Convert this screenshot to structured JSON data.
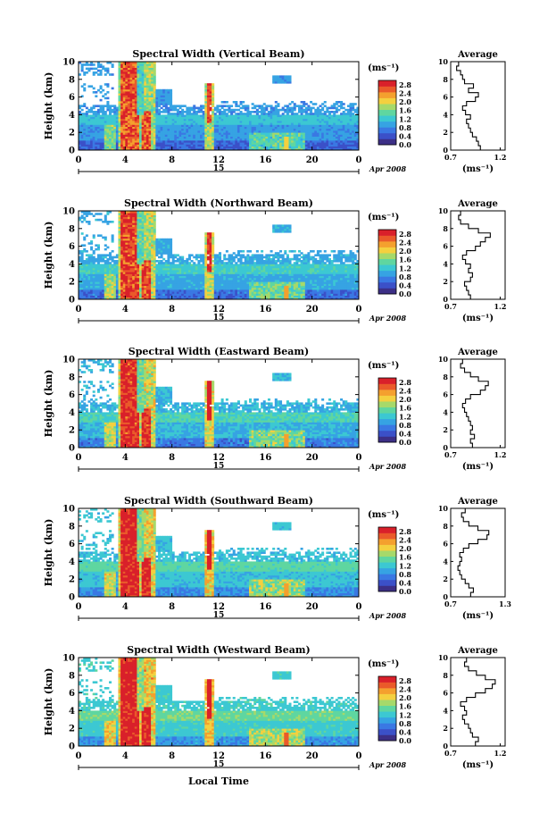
{
  "figure": {
    "xlabel_bottom": "Local Time",
    "date_label": "Apr 2008",
    "day_label": "15",
    "ylabel": "Height (km)",
    "cbar_unit": "(ms⁻¹)",
    "avg_title": "Average",
    "avg_xlabel": "(ms⁻¹)"
  },
  "colors": {
    "scale": [
      "#3c2f86",
      "#3b50c8",
      "#3a78e3",
      "#36a3e3",
      "#3cc8d2",
      "#5fd6a0",
      "#a6d96a",
      "#f4d03f",
      "#f4a02e",
      "#ea5a2a",
      "#d9202a"
    ]
  },
  "chart_data": [
    {
      "type": "heatmap",
      "title": "Spectral Width (Vertical Beam)",
      "x_ticks": [
        "0",
        "4",
        "8",
        "12",
        "16",
        "20",
        "0"
      ],
      "y_ticks": [
        "0",
        "2",
        "4",
        "6",
        "8",
        "10"
      ],
      "xlim": [
        0,
        24
      ],
      "ylim": [
        0,
        10
      ],
      "cbar_ticks": [
        "0.0",
        "0.4",
        "0.8",
        "1.2",
        "1.6",
        "2.0",
        "2.4",
        "2.8"
      ],
      "cbar_range": [
        0,
        2.8
      ],
      "average": {
        "x_ticks": [
          "0.7",
          "1.2"
        ],
        "xlim": [
          0.7,
          1.25
        ],
        "height": [
          0,
          0.5,
          1,
          1.5,
          2,
          2.5,
          3,
          3.5,
          4,
          4.5,
          5,
          5.5,
          6,
          6.5,
          7,
          7.5,
          8,
          8.5,
          9,
          9.5
        ],
        "value": [
          1.0,
          0.98,
          0.96,
          0.92,
          0.9,
          0.88,
          0.86,
          0.9,
          0.85,
          0.82,
          0.86,
          0.95,
          0.98,
          0.88,
          0.93,
          0.84,
          0.82,
          0.8,
          0.76,
          0.78
        ]
      }
    },
    {
      "type": "heatmap",
      "title": "Spectral Width (Northward Beam)",
      "x_ticks": [
        "0",
        "4",
        "8",
        "12",
        "16",
        "20",
        "0"
      ],
      "y_ticks": [
        "0",
        "2",
        "4",
        "6",
        "8",
        "10"
      ],
      "xlim": [
        0,
        24
      ],
      "ylim": [
        0,
        10
      ],
      "cbar_ticks": [
        "0.0",
        "0.4",
        "0.8",
        "1.2",
        "1.6",
        "2.0",
        "2.4",
        "2.8"
      ],
      "cbar_range": [
        0,
        2.8
      ],
      "average": {
        "x_ticks": [
          "0.7",
          "1.2"
        ],
        "xlim": [
          0.7,
          1.25
        ],
        "height": [
          0,
          0.5,
          1,
          1.5,
          2,
          2.5,
          3,
          3.5,
          4,
          4.5,
          5,
          5.5,
          6,
          6.5,
          7,
          7.5,
          8,
          8.5,
          9,
          9.5
        ],
        "value": [
          0.9,
          0.88,
          0.86,
          0.84,
          0.9,
          0.92,
          0.88,
          0.9,
          0.85,
          0.82,
          0.86,
          0.95,
          1.0,
          1.05,
          1.1,
          0.98,
          0.88,
          0.8,
          0.78,
          0.8
        ]
      }
    },
    {
      "type": "heatmap",
      "title": "Spectral Width (Eastward Beam)",
      "x_ticks": [
        "0",
        "4",
        "8",
        "12",
        "16",
        "20",
        "0"
      ],
      "y_ticks": [
        "0",
        "2",
        "4",
        "6",
        "8",
        "10"
      ],
      "xlim": [
        0,
        24
      ],
      "ylim": [
        0,
        10
      ],
      "cbar_ticks": [
        "0.0",
        "0.4",
        "0.8",
        "1.2",
        "1.6",
        "2.0",
        "2.4",
        "2.8"
      ],
      "cbar_range": [
        0,
        2.8
      ],
      "average": {
        "x_ticks": [
          "0.7",
          "1.2"
        ],
        "xlim": [
          0.7,
          1.25
        ],
        "height": [
          0,
          0.5,
          1,
          1.5,
          2,
          2.5,
          3,
          3.5,
          4,
          4.5,
          5,
          5.5,
          6,
          6.5,
          7,
          7.5,
          8,
          8.5,
          9,
          9.5
        ],
        "value": [
          0.92,
          0.9,
          0.94,
          0.9,
          0.92,
          0.9,
          0.88,
          0.86,
          0.84,
          0.82,
          0.85,
          0.9,
          1.0,
          1.05,
          1.08,
          0.98,
          0.9,
          0.84,
          0.8,
          0.82
        ]
      }
    },
    {
      "type": "heatmap",
      "title": "Spectral Width (Southward Beam)",
      "x_ticks": [
        "0",
        "4",
        "8",
        "12",
        "16",
        "20",
        "0"
      ],
      "y_ticks": [
        "0",
        "2",
        "4",
        "6",
        "8",
        "10"
      ],
      "xlim": [
        0,
        24
      ],
      "ylim": [
        0,
        10
      ],
      "cbar_ticks": [
        "0.0",
        "0.4",
        "0.8",
        "1.2",
        "1.6",
        "2.0",
        "2.4",
        "2.8"
      ],
      "cbar_range": [
        0,
        2.8
      ],
      "average": {
        "x_ticks": [
          "0.7",
          "1.3"
        ],
        "xlim": [
          0.7,
          1.3
        ],
        "height": [
          0,
          0.5,
          1,
          1.5,
          2,
          2.5,
          3,
          3.5,
          4,
          4.5,
          5,
          5.5,
          6,
          6.5,
          7,
          7.5,
          8,
          8.5,
          9,
          9.5
        ],
        "value": [
          0.92,
          0.95,
          0.9,
          0.86,
          0.82,
          0.8,
          0.78,
          0.8,
          0.82,
          0.8,
          0.84,
          0.9,
          1.0,
          1.1,
          1.12,
          1.0,
          0.9,
          0.84,
          0.82,
          0.86
        ]
      }
    },
    {
      "type": "heatmap",
      "title": "Spectral Width (Westward Beam)",
      "x_ticks": [
        "0",
        "4",
        "8",
        "12",
        "16",
        "20",
        "0"
      ],
      "y_ticks": [
        "0",
        "2",
        "4",
        "6",
        "8",
        "10"
      ],
      "xlim": [
        0,
        24
      ],
      "ylim": [
        0,
        10
      ],
      "cbar_ticks": [
        "0.0",
        "0.4",
        "0.8",
        "1.2",
        "1.6",
        "2.0",
        "2.4",
        "2.8"
      ],
      "cbar_range": [
        0,
        2.8
      ],
      "average": {
        "x_ticks": [
          "0.7",
          "1.2"
        ],
        "xlim": [
          0.7,
          1.25
        ],
        "height": [
          0,
          0.5,
          1,
          1.5,
          2,
          2.5,
          3,
          3.5,
          4,
          4.5,
          5,
          5.5,
          6,
          6.5,
          7,
          7.5,
          8,
          8.5,
          9,
          9.5
        ],
        "value": [
          0.95,
          0.98,
          0.92,
          0.9,
          0.88,
          0.84,
          0.82,
          0.86,
          0.84,
          0.8,
          0.86,
          0.95,
          1.05,
          1.12,
          1.15,
          1.05,
          0.96,
          0.88,
          0.84,
          0.86
        ]
      }
    }
  ]
}
